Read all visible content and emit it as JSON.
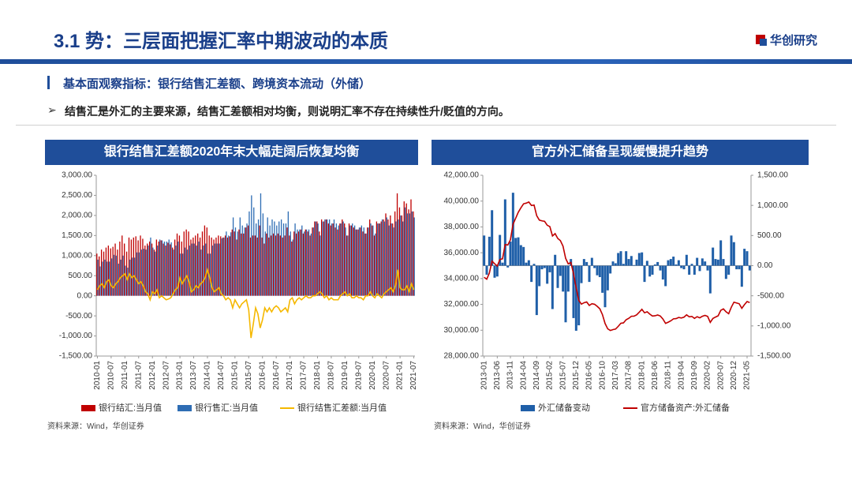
{
  "header": {
    "title": "3.1 势：三层面把握汇率中期波动的本质",
    "logo": "华创研究"
  },
  "section": "基本面观察指标：银行结售汇差额、跨境资本流动（外储）",
  "bullet": "结售汇是外汇的主要来源，结售汇差额相对均衡，则说明汇率不存在持续性升/贬值的方向。",
  "chart_data": [
    {
      "type": "bar",
      "title": "银行结售汇差额2020年末大幅走阔后恢复均衡",
      "source": "资料来源：Wind，华创证券",
      "categories": [
        "2010-01",
        null,
        null,
        null,
        null,
        null,
        "2010-07",
        null,
        null,
        null,
        null,
        null,
        "2011-01",
        null,
        null,
        null,
        null,
        null,
        "2011-07",
        null,
        null,
        null,
        null,
        null,
        "2012-01",
        null,
        null,
        null,
        null,
        null,
        "2012-07",
        null,
        null,
        null,
        null,
        null,
        "2013-01",
        null,
        null,
        null,
        null,
        null,
        "2013-07",
        null,
        null,
        null,
        null,
        null,
        "2014-01",
        null,
        null,
        null,
        null,
        null,
        "2014-07",
        null,
        null,
        null,
        null,
        null,
        "2015-01",
        null,
        null,
        null,
        null,
        null,
        "2015-07",
        null,
        null,
        null,
        null,
        null,
        "2016-01",
        null,
        null,
        null,
        null,
        null,
        "2016-07",
        null,
        null,
        null,
        null,
        null,
        "2017-01",
        null,
        null,
        null,
        null,
        null,
        "2017-07",
        null,
        null,
        null,
        null,
        null,
        "2018-01",
        null,
        null,
        null,
        null,
        null,
        "2018-07",
        null,
        null,
        null,
        null,
        null,
        "2019-01",
        null,
        null,
        null,
        null,
        null,
        "2019-07",
        null,
        null,
        null,
        null,
        null,
        "2020-01",
        null,
        null,
        null,
        null,
        null,
        "2020-07",
        null,
        null,
        null,
        null,
        null,
        "2021-01",
        null,
        null,
        null,
        null,
        null,
        "2021-07"
      ],
      "ylim": [
        -1500,
        3000
      ],
      "yticks": [
        {
          "value": -1500,
          "label": "-1,500.00"
        },
        {
          "value": -1000,
          "label": "-1,000.00"
        },
        {
          "value": -500,
          "label": "-500.00"
        },
        {
          "value": 0,
          "label": "0.00"
        },
        {
          "value": 500,
          "label": "500.00"
        },
        {
          "value": 1000,
          "label": "1,000.00"
        },
        {
          "value": 1500,
          "label": "1,500.00"
        },
        {
          "value": 2000,
          "label": "2,000.00"
        },
        {
          "value": 2500,
          "label": "2,500.00"
        },
        {
          "value": 3000,
          "label": "3,000.00"
        }
      ],
      "series": [
        {
          "name": "银行结汇:当月值",
          "color": "#c00000",
          "type": "bar",
          "values": [
            1050,
            980,
            1150,
            1100,
            1200,
            1250,
            1180,
            1220,
            1300,
            1150,
            1350,
            1500,
            1300,
            1100,
            1450,
            1400,
            1450,
            1480,
            1380,
            1500,
            1420,
            1250,
            1300,
            1350,
            1300,
            1150,
            1400,
            1350,
            1380,
            1300,
            1250,
            1320,
            1280,
            1200,
            1400,
            1550,
            1500,
            1350,
            1600,
            1650,
            1600,
            1400,
            1450,
            1500,
            1550,
            1450,
            1600,
            1750,
            1700,
            1500,
            1450,
            1400,
            1450,
            1500,
            1480,
            1450,
            1500,
            1450,
            1480,
            1650,
            1600,
            1400,
            1650,
            1550,
            1550,
            1700,
            1750,
            1450,
            1500,
            1500,
            1450,
            1750,
            1450,
            1300,
            1550,
            1450,
            1500,
            1550,
            1500,
            1550,
            1500,
            1450,
            1500,
            1700,
            1500,
            1350,
            1600,
            1550,
            1600,
            1650,
            1550,
            1650,
            1600,
            1500,
            1700,
            1850,
            1850,
            1600,
            1900,
            1850,
            1900,
            1800,
            1750,
            1800,
            1700,
            1650,
            1800,
            1900,
            1800,
            1500,
            1800,
            1750,
            1700,
            1650,
            1650,
            1700,
            1600,
            1550,
            1700,
            1900,
            1750,
            1500,
            1850,
            1800,
            1850,
            1900,
            2050,
            1900,
            2000,
            1800,
            2100,
            2550,
            2200,
            2000,
            2350,
            2300,
            2150,
            2400,
            2100
          ]
        },
        {
          "name": "银行售汇:当月值",
          "color": "#2e6db4",
          "type": "bar",
          "values": [
            900,
            730,
            850,
            900,
            850,
            850,
            930,
            1020,
            1000,
            800,
            900,
            1000,
            750,
            700,
            900,
            950,
            950,
            1080,
            1080,
            1150,
            1170,
            1150,
            1250,
            1450,
            1200,
            1100,
            1250,
            1400,
            1380,
            1350,
            1350,
            1400,
            1330,
            1150,
            1250,
            1350,
            1050,
            1050,
            1200,
            1150,
            1250,
            1300,
            1300,
            1250,
            1350,
            1150,
            1250,
            1300,
            1050,
            1050,
            1250,
            1300,
            1300,
            1300,
            1430,
            1450,
            1600,
            1500,
            1580,
            1950,
            1700,
            1600,
            1950,
            1750,
            1700,
            1800,
            2100,
            2500,
            2200,
            1800,
            1900,
            2550,
            2050,
            1600,
            1950,
            1750,
            1900,
            1850,
            1750,
            1850,
            1900,
            1800,
            1800,
            2100,
            1600,
            1400,
            1800,
            1650,
            1650,
            1750,
            1600,
            1650,
            1650,
            1550,
            1700,
            1850,
            1800,
            1500,
            1850,
            1900,
            1900,
            1900,
            1800,
            1900,
            1800,
            1750,
            1800,
            1850,
            1700,
            1500,
            1750,
            1800,
            1750,
            1650,
            1700,
            1750,
            1700,
            1550,
            1700,
            1800,
            1750,
            1550,
            1800,
            1800,
            1900,
            1850,
            1950,
            1750,
            1800,
            1700,
            1850,
            1900,
            2000,
            1850,
            2200,
            2050,
            2050,
            2100,
            1950
          ]
        },
        {
          "name": "银行结售汇差额:当月值",
          "color": "#f5b800",
          "type": "line",
          "values": [
            150,
            250,
            300,
            200,
            350,
            400,
            250,
            200,
            300,
            350,
            450,
            500,
            550,
            400,
            550,
            450,
            500,
            400,
            300,
            350,
            250,
            100,
            50,
            -100,
            100,
            50,
            150,
            -50,
            0,
            -50,
            -100,
            -80,
            -50,
            50,
            150,
            200,
            450,
            300,
            400,
            500,
            350,
            100,
            150,
            250,
            200,
            300,
            350,
            450,
            650,
            450,
            200,
            100,
            150,
            200,
            50,
            0,
            -100,
            -50,
            -100,
            -300,
            -100,
            -200,
            -300,
            -200,
            -150,
            -100,
            -350,
            -1050,
            -700,
            -300,
            -450,
            -800,
            -600,
            -300,
            -400,
            -300,
            -400,
            -300,
            -250,
            -300,
            -400,
            -350,
            -300,
            -400,
            -100,
            -50,
            -200,
            -100,
            -50,
            -100,
            -50,
            0,
            -50,
            -50,
            0,
            0,
            50,
            100,
            50,
            -50,
            0,
            -100,
            -50,
            -100,
            -100,
            -100,
            0,
            50,
            100,
            0,
            50,
            -50,
            -50,
            0,
            -50,
            -50,
            -100,
            0,
            0,
            100,
            0,
            -50,
            50,
            0,
            -50,
            50,
            100,
            150,
            200,
            100,
            250,
            650,
            200,
            150,
            150,
            250,
            100,
            300,
            150
          ]
        }
      ]
    },
    {
      "type": "bar",
      "title": "官方外汇储备呈现缓慢提升趋势",
      "source": "资料来源：Wind，华创证券",
      "categories": [
        "2013-01",
        null,
        null,
        null,
        null,
        "2013-06",
        null,
        null,
        null,
        null,
        "2013-11",
        null,
        null,
        null,
        null,
        "2014-04",
        null,
        null,
        null,
        null,
        "2014-09",
        null,
        null,
        null,
        null,
        "2015-02",
        null,
        null,
        null,
        null,
        "2015-07",
        null,
        null,
        null,
        null,
        "2015-12",
        null,
        null,
        null,
        null,
        "2016-05",
        null,
        null,
        null,
        null,
        "2016-10",
        null,
        null,
        null,
        null,
        "2017-03",
        null,
        null,
        null,
        null,
        "2017-08",
        null,
        null,
        null,
        null,
        "2018-01",
        null,
        null,
        null,
        null,
        "2018-06",
        null,
        null,
        null,
        null,
        "2018-11",
        null,
        null,
        null,
        null,
        "2019-04",
        null,
        null,
        null,
        null,
        "2019-09",
        null,
        null,
        null,
        null,
        "2020-02",
        null,
        null,
        null,
        null,
        "2020-07",
        null,
        null,
        null,
        null,
        "2020-12",
        null,
        null,
        null,
        null,
        "2021-05",
        null
      ],
      "ylim": [
        28000,
        42000
      ],
      "yticks": [
        {
          "value": 28000,
          "label": "28,000.00"
        },
        {
          "value": 30000,
          "label": "30,000.00"
        },
        {
          "value": 32000,
          "label": "32,000.00"
        },
        {
          "value": 34000,
          "label": "34,000.00"
        },
        {
          "value": 36000,
          "label": "36,000.00"
        },
        {
          "value": 38000,
          "label": "38,000.00"
        },
        {
          "value": 40000,
          "label": "40,000.00"
        },
        {
          "value": 42000,
          "label": "42,000.00"
        }
      ],
      "y2lim": [
        -1500,
        1500
      ],
      "y2ticks": [
        {
          "value": -1500,
          "label": "-1,500.00"
        },
        {
          "value": -1000,
          "label": "-1,000.00"
        },
        {
          "value": -500,
          "label": "-500.00"
        },
        {
          "value": 0,
          "label": "0.00"
        },
        {
          "value": 500,
          "label": "500.00"
        },
        {
          "value": 1000,
          "label": "1,000.00"
        },
        {
          "value": 1500,
          "label": "1,500.00"
        }
      ],
      "series": [
        {
          "name": "外汇储备变动",
          "color": "#1f5fa8",
          "type": "bar",
          "axis": "y2",
          "values": [
            500,
            -150,
            480,
            920,
            -200,
            -180,
            510,
            50,
            1100,
            -30,
            400,
            1210,
            460,
            470,
            340,
            310,
            50,
            90,
            -270,
            30,
            -820,
            -340,
            -60,
            -40,
            -300,
            -110,
            -720,
            180,
            -370,
            -170,
            -430,
            -940,
            -430,
            110,
            -870,
            -1080,
            -990,
            -290,
            110,
            60,
            -270,
            130,
            -40,
            -160,
            -190,
            -450,
            -690,
            -410,
            -130,
            70,
            40,
            210,
            240,
            30,
            240,
            110,
            160,
            10,
            100,
            210,
            220,
            -270,
            80,
            -180,
            -150,
            20,
            60,
            -80,
            -230,
            -340,
            90,
            110,
            150,
            20,
            90,
            -40,
            -60,
            180,
            -150,
            30,
            -150,
            130,
            -90,
            120,
            70,
            -80,
            -460,
            300,
            110,
            100,
            420,
            110,
            -220,
            -150,
            500,
            390,
            -60,
            -60,
            -350,
            280,
            240,
            -80
          ]
        },
        {
          "name": "官方储备资产:外汇储备",
          "color": "#c00000",
          "type": "line",
          "values": [
            34100,
            33950,
            34430,
            35350,
            35150,
            34970,
            35480,
            35530,
            36630,
            36600,
            37000,
            38210,
            38670,
            39140,
            39480,
            39790,
            39840,
            39930,
            39660,
            39690,
            38870,
            38530,
            38470,
            38430,
            38130,
            38020,
            37300,
            37480,
            37110,
            36940,
            36510,
            35570,
            35140,
            35250,
            34380,
            33300,
            32310,
            32020,
            32130,
            32190,
            31920,
            32050,
            32010,
            31850,
            31660,
            31210,
            30520,
            30110,
            29980,
            30050,
            30090,
            30300,
            30540,
            30570,
            30810,
            30920,
            31080,
            31090,
            31190,
            31400,
            31620,
            31350,
            31430,
            31250,
            31100,
            31120,
            31180,
            31100,
            30870,
            30530,
            30620,
            30730,
            30880,
            30900,
            30990,
            30950,
            31010,
            31190,
            31040,
            31070,
            30920,
            31050,
            30960,
            31080,
            31150,
            31070,
            30610,
            30910,
            31020,
            31120,
            31540,
            31650,
            31430,
            31280,
            31780,
            32170,
            32110,
            32050,
            31700,
            31980,
            32220,
            32140
          ]
        }
      ]
    }
  ]
}
